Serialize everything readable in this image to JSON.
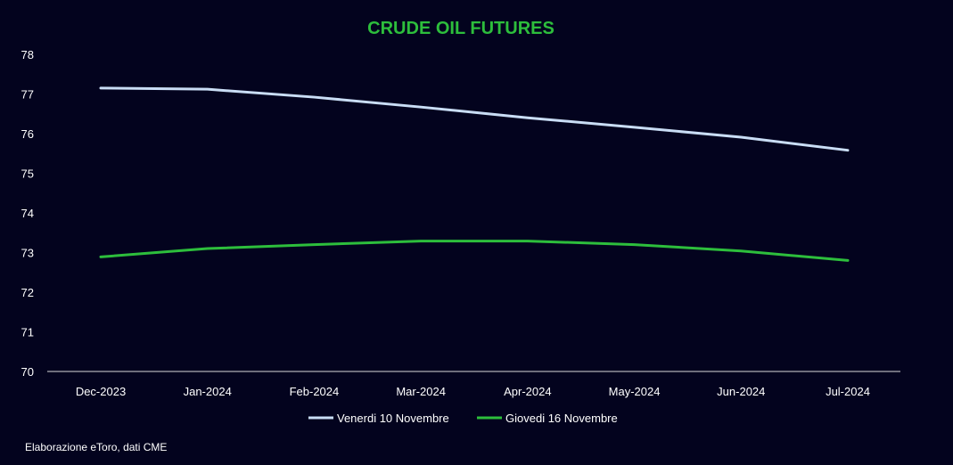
{
  "chart_data": {
    "type": "line",
    "title": "CRUDE OIL FUTURES",
    "categories": [
      "Dec-2023",
      "Jan-2024",
      "Feb-2024",
      "Mar-2024",
      "Apr-2024",
      "May-2024",
      "Jun-2024",
      "Jul-2024"
    ],
    "series": [
      {
        "name": "Venerdi 10 Novembre",
        "color": "#c9ddf5",
        "values": [
          77.15,
          77.12,
          76.92,
          76.67,
          76.4,
          76.16,
          75.91,
          75.58
        ]
      },
      {
        "name": "Giovedi 16 Novembre",
        "color": "#2dbe3c",
        "values": [
          72.89,
          73.1,
          73.2,
          73.29,
          73.29,
          73.2,
          73.04,
          72.8
        ]
      }
    ],
    "ylim": [
      70,
      78
    ],
    "yticks": [
      70,
      71,
      72,
      73,
      74,
      75,
      76,
      77,
      78
    ],
    "grid": false,
    "legend_position": "bottom"
  },
  "title_color": "#2dbe3c",
  "background_color": "#03031e",
  "source_note": "Elaborazione eToro, dati CME"
}
